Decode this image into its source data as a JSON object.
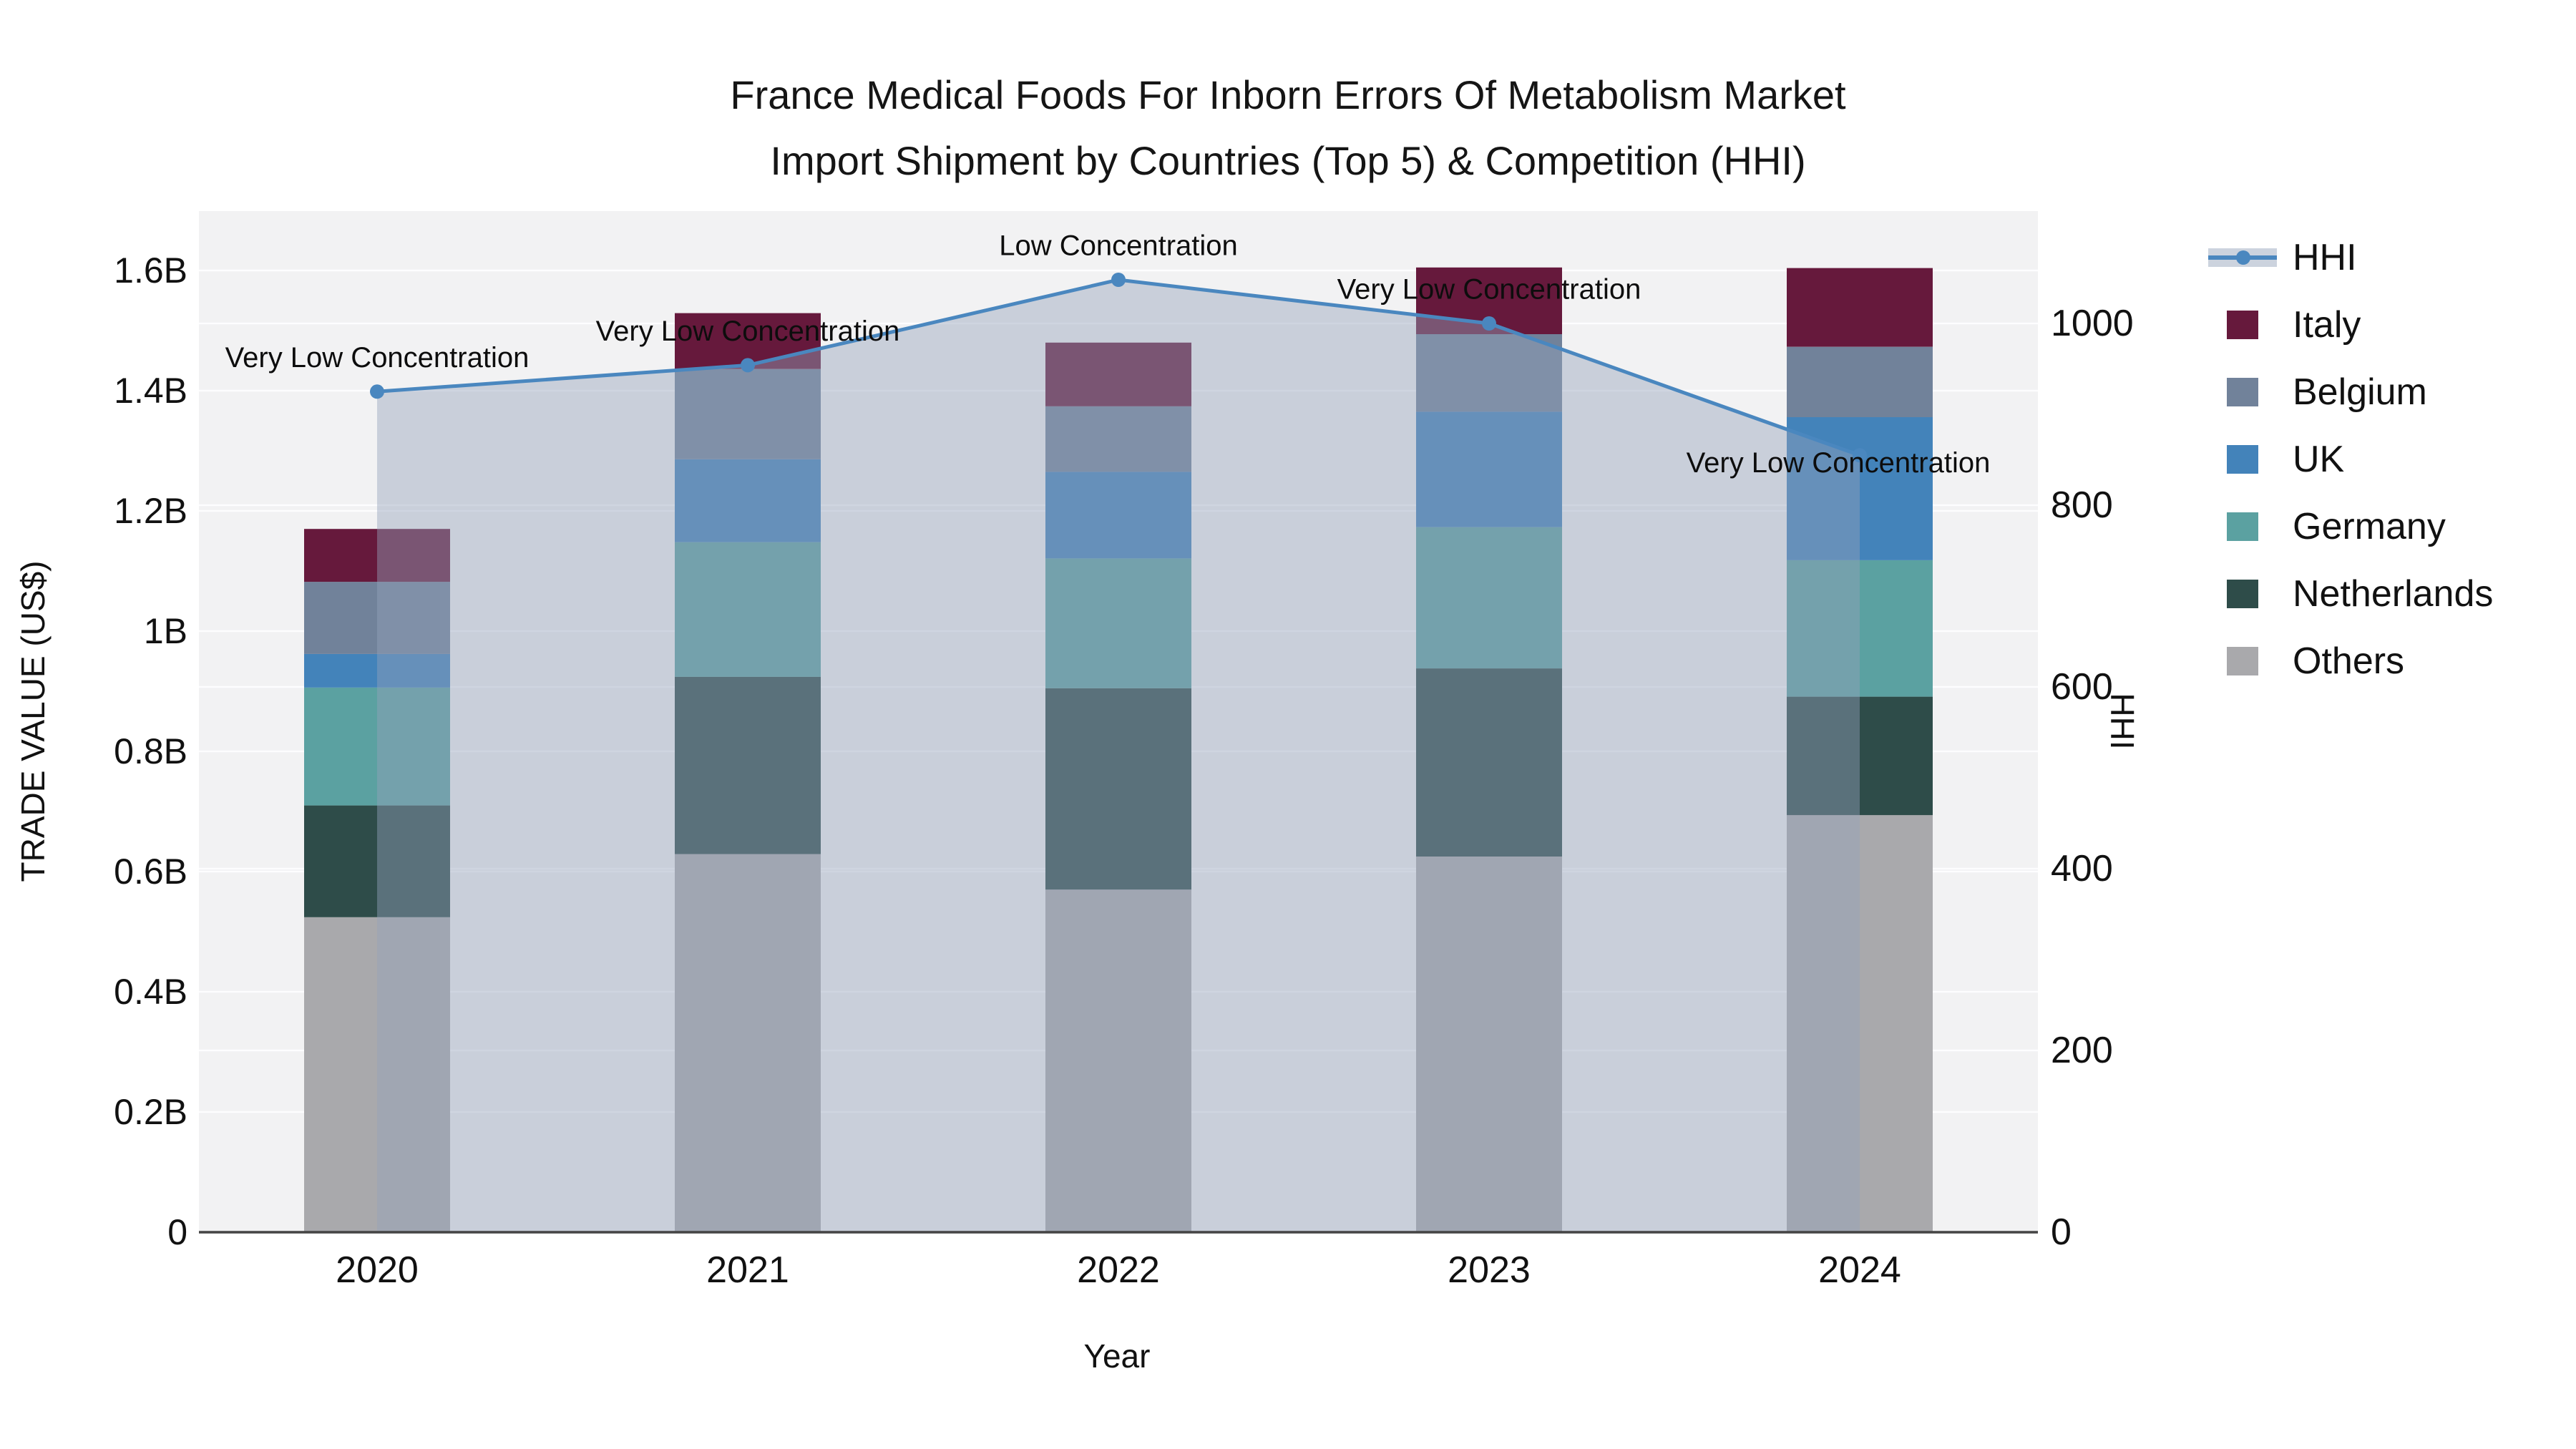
{
  "title": {
    "line1": "France Medical Foods For Inborn Errors Of Metabolism Market",
    "line2": "Import Shipment by Countries (Top 5) & Competition (HHI)"
  },
  "legend": {
    "order_note": "top to bottom",
    "labels": [
      "HHI",
      "Italy",
      "Belgium",
      "UK",
      "Germany",
      "Netherlands",
      "Others"
    ]
  },
  "chart_data": {
    "type": "combo-stacked-bar-line",
    "bar_type": "stacked",
    "unit": "billion US$",
    "categories": [
      "2020",
      "2021",
      "2022",
      "2023",
      "2024"
    ],
    "bar_series": [
      {
        "name": "Others",
        "color": "#a9a9ac",
        "values": [
          0.524,
          0.629,
          0.57,
          0.625,
          0.694
        ]
      },
      {
        "name": "Netherlands",
        "color": "#2e4c49",
        "values": [
          0.186,
          0.295,
          0.335,
          0.313,
          0.197
        ]
      },
      {
        "name": "Germany",
        "color": "#5ba1a1",
        "values": [
          0.196,
          0.224,
          0.216,
          0.235,
          0.227
        ]
      },
      {
        "name": "UK",
        "color": "#4383ba",
        "values": [
          0.056,
          0.138,
          0.144,
          0.192,
          0.238
        ]
      },
      {
        "name": "Belgium",
        "color": "#71829a",
        "values": [
          0.12,
          0.15,
          0.109,
          0.129,
          0.117
        ]
      },
      {
        "name": "Italy",
        "color": "#66193c",
        "values": [
          0.088,
          0.093,
          0.106,
          0.111,
          0.131
        ]
      }
    ],
    "bar_totals": [
      1.17,
      1.529,
      1.48,
      1.605,
      1.604
    ],
    "line_series": {
      "name": "HHI",
      "color": "#4a87bf",
      "area_color": "rgba(148,161,186,0.44)",
      "values": [
        925,
        954,
        1048,
        1000,
        855
      ]
    },
    "annotations": [
      "Very Low Concentration",
      "Very Low Concentration",
      "Low Concentration",
      "Very Low Concentration",
      "Very Low Concentration"
    ],
    "left_axis": {
      "title": "TRADE VALUE (US$)",
      "ticks": [
        "1.6B",
        "1.4B",
        "1.2B",
        "1B",
        "0.8B",
        "0.6B",
        "0.4B",
        "0.2B",
        "0"
      ],
      "range": [
        0,
        1.7
      ]
    },
    "right_axis": {
      "title": "HHI",
      "ticks": [
        "1000",
        "800",
        "600",
        "400",
        "200",
        "0"
      ],
      "range": [
        0,
        1120
      ]
    },
    "x_axis": {
      "title": "Year"
    },
    "layout": {
      "grid": "on",
      "legend_position": "right",
      "plot_background": "#f2f2f3"
    }
  }
}
